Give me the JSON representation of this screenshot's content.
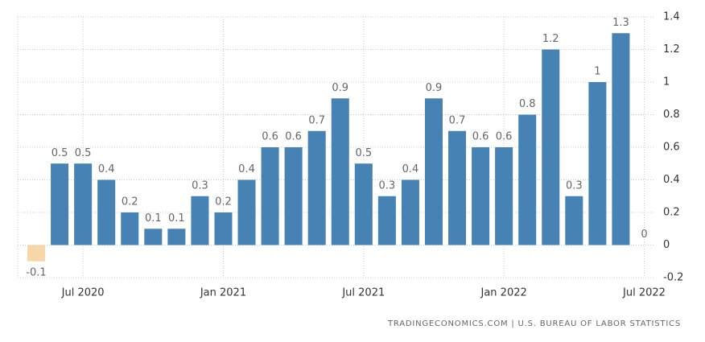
{
  "chart_data": {
    "type": "bar",
    "categories": [
      null,
      null,
      "Jul 2020",
      null,
      null,
      null,
      null,
      null,
      "Jan 2021",
      null,
      null,
      null,
      null,
      null,
      "Jul 2021",
      null,
      null,
      null,
      null,
      null,
      "Jan 2022",
      null,
      null,
      null,
      null,
      null,
      "Jul 2022"
    ],
    "values": [
      -0.1,
      0.5,
      0.5,
      0.4,
      0.2,
      0.1,
      0.1,
      0.3,
      0.2,
      0.4,
      0.6,
      0.6,
      0.7,
      0.9,
      0.5,
      0.3,
      0.4,
      0.9,
      0.7,
      0.6,
      0.6,
      0.8,
      1.2,
      0.3,
      1,
      1.3,
      0
    ],
    "color": "#4682b4",
    "negative_color": "#f7d7a9",
    "ylim": [
      -0.2,
      1.4
    ],
    "yticks": [
      -0.2,
      0,
      0.2,
      0.4,
      0.6,
      0.8,
      1,
      1.2,
      1.4
    ],
    "grid": true,
    "source": "TRADINGECONOMICS.COM | U.S. BUREAU OF LABOR STATISTICS"
  }
}
